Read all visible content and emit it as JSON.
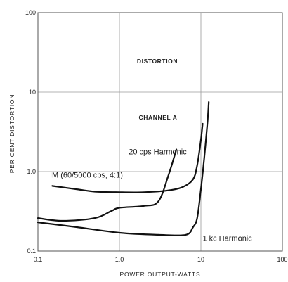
{
  "chart_data": {
    "type": "line",
    "title": "DISTORTION",
    "subtitle": "CHANNEL A",
    "xlabel": "POWER OUTPUT-WATTS",
    "ylabel": "PER CENT DISTORTION",
    "x_scale": "log",
    "y_scale": "log",
    "xlim": [
      0.1,
      100
    ],
    "ylim": [
      0.1,
      100
    ],
    "x_ticks": [
      {
        "value": 0.1,
        "label": "0.1"
      },
      {
        "value": 1,
        "label": "1.0"
      },
      {
        "value": 10,
        "label": "10"
      },
      {
        "value": 100,
        "label": "100"
      }
    ],
    "y_ticks": [
      {
        "value": 0.1,
        "label": "0.1"
      },
      {
        "value": 1,
        "label": "1.0"
      },
      {
        "value": 10,
        "label": "10"
      },
      {
        "value": 100,
        "label": "100"
      }
    ],
    "grid": true,
    "series": [
      {
        "name": "20 cps Harmonic",
        "points": [
          [
            0.1,
            0.26
          ],
          [
            0.2,
            0.24
          ],
          [
            0.5,
            0.26
          ],
          [
            0.8,
            0.32
          ],
          [
            1.0,
            0.35
          ],
          [
            2.0,
            0.37
          ],
          [
            3.0,
            0.42
          ],
          [
            4.0,
            0.9
          ],
          [
            5.0,
            1.9
          ]
        ]
      },
      {
        "name": "IM (60/5000 cps, 4:1)",
        "points": [
          [
            0.15,
            0.66
          ],
          [
            0.3,
            0.6
          ],
          [
            0.5,
            0.56
          ],
          [
            1.0,
            0.55
          ],
          [
            2.0,
            0.55
          ],
          [
            4.0,
            0.58
          ],
          [
            6.0,
            0.64
          ],
          [
            8.0,
            0.8
          ],
          [
            9.0,
            1.2
          ],
          [
            10.0,
            2.5
          ],
          [
            10.5,
            4.0
          ]
        ]
      },
      {
        "name": "1 kc Harmonic",
        "points": [
          [
            0.1,
            0.23
          ],
          [
            0.3,
            0.2
          ],
          [
            1.0,
            0.17
          ],
          [
            3.0,
            0.16
          ],
          [
            6.5,
            0.16
          ],
          [
            8.0,
            0.2
          ],
          [
            9.0,
            0.26
          ],
          [
            10.0,
            0.6
          ],
          [
            11.0,
            1.5
          ],
          [
            12.0,
            4.0
          ],
          [
            12.5,
            7.5
          ]
        ]
      }
    ],
    "annotations": [
      {
        "text": "20 cps Harmonic",
        "x": 1.3,
        "y": 1.65
      },
      {
        "text": "IM (60/5000 cps, 4:1)",
        "x": 0.14,
        "y": 0.84
      },
      {
        "text": "1 kc Harmonic",
        "x": 10.5,
        "y": 0.135
      }
    ]
  }
}
